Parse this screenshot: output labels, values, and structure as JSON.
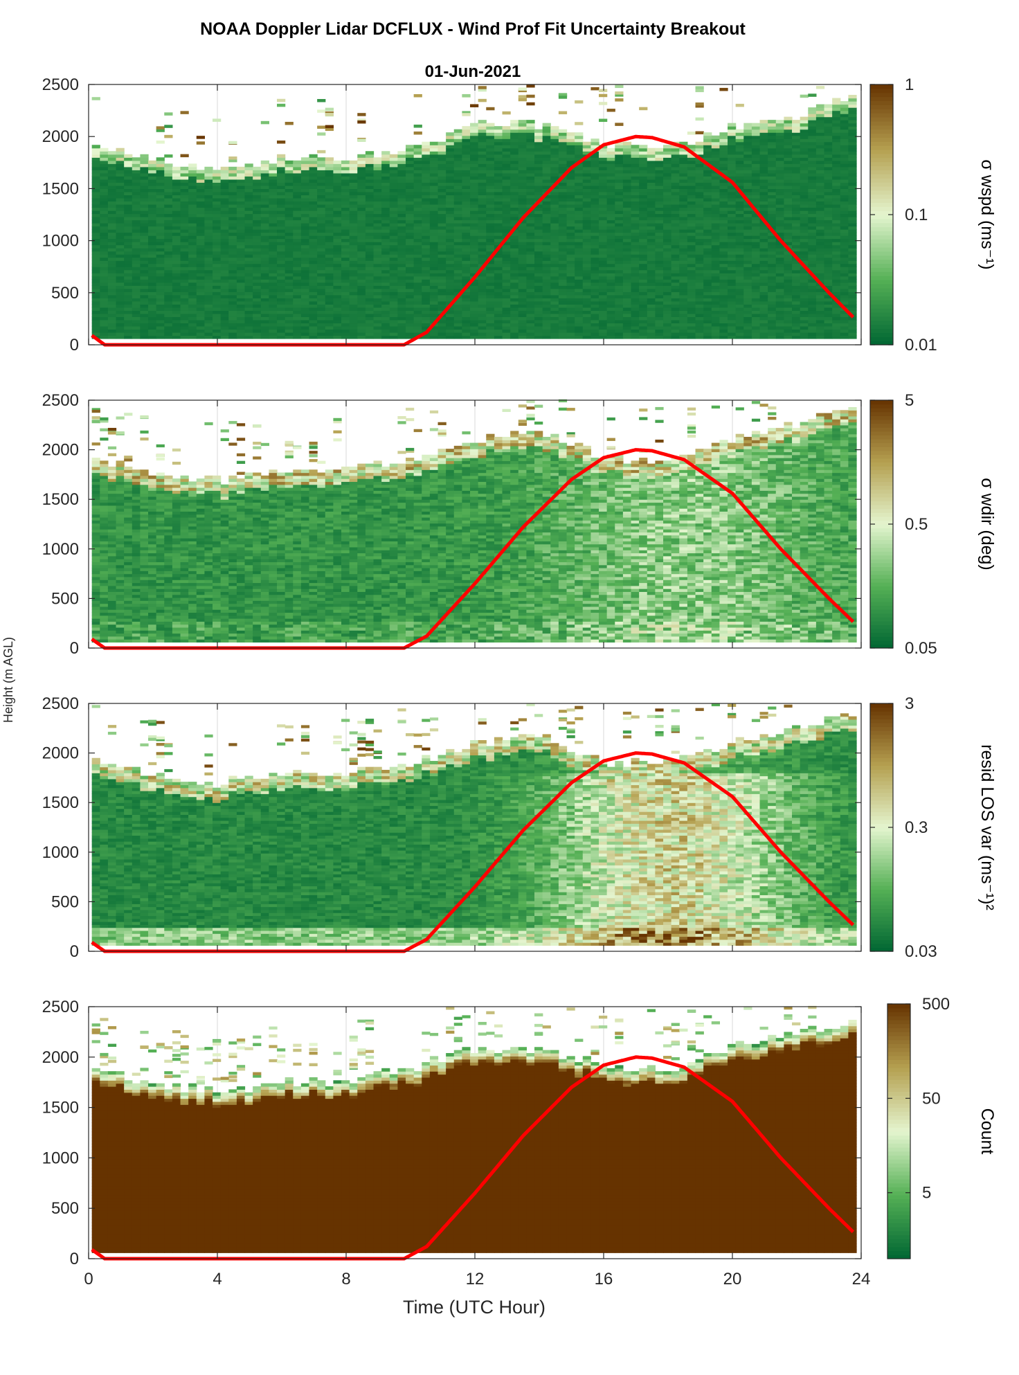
{
  "figure": {
    "title": "NOAA Doppler Lidar DCFLUX - Wind Prof Fit Uncertainty Breakout",
    "date": "01-Jun-2021",
    "xlabel": "Time (UTC Hour)",
    "ylabel": "Height (m AGL)"
  },
  "colors": {
    "colormap_low": "#006633",
    "colormap_mid_low": "#55b055",
    "colormap_mid": "#e4f5cf",
    "colormap_mid_high": "#b5a050",
    "colormap_high": "#663300",
    "sun_curve": "#ff0000",
    "grid": "#d9d9d9",
    "axes": "#262626"
  },
  "chart_data": [
    {
      "type": "heatmap",
      "panel": 1,
      "x_range": [
        0,
        24
      ],
      "y_range": [
        0,
        2500
      ],
      "xticks": [
        0,
        4,
        8,
        12,
        16,
        20,
        24
      ],
      "yticks": [
        0,
        500,
        1000,
        1500,
        2000,
        2500
      ],
      "grid": "x only",
      "colorbar": {
        "label": "σ wspd (ms⁻¹)",
        "scale": "log",
        "range": [
          0.01,
          1
        ],
        "ticks": [
          "0.01",
          "0.1",
          "1"
        ],
        "tick_values": [
          0.01,
          0.1,
          1
        ]
      },
      "field_summary": "mostly near the low end of the scale below the data top; sparse higher values near the top edge",
      "data_top_m": {
        "hours": [
          0.2,
          2,
          4,
          6,
          8,
          10,
          12,
          14,
          16,
          18,
          20,
          22,
          23.8
        ],
        "height": [
          1890,
          1750,
          1680,
          1780,
          1780,
          1900,
          2100,
          2100,
          1900,
          1880,
          2100,
          2200,
          2400
        ]
      },
      "lowest_data_m": 60
    },
    {
      "type": "heatmap",
      "panel": 2,
      "x_range": [
        0,
        24
      ],
      "y_range": [
        0,
        2500
      ],
      "xticks": [
        0,
        4,
        8,
        12,
        16,
        20,
        24
      ],
      "yticks": [
        0,
        500,
        1000,
        1500,
        2000,
        2500
      ],
      "grid": "x only",
      "colorbar": {
        "label": "σ wdir (deg)",
        "scale": "log",
        "range": [
          0.05,
          5
        ],
        "ticks": [
          "0.05",
          "0.5",
          "5"
        ],
        "tick_values": [
          0.05,
          0.5,
          5
        ]
      },
      "field_summary": "low values overnight, larger values in afternoon mixed layer and near the data top",
      "data_top_m": {
        "hours": [
          0.2,
          2,
          4,
          6,
          8,
          10,
          12,
          14,
          16,
          18,
          20,
          22,
          23.8
        ],
        "height": [
          1890,
          1750,
          1680,
          1780,
          1780,
          1900,
          2100,
          2150,
          1900,
          1880,
          2100,
          2250,
          2420
        ]
      },
      "lowest_data_m": 60
    },
    {
      "type": "heatmap",
      "panel": 3,
      "x_range": [
        0,
        24
      ],
      "y_range": [
        0,
        2500
      ],
      "xticks": [
        0,
        4,
        8,
        12,
        16,
        20,
        24
      ],
      "yticks": [
        0,
        500,
        1000,
        1500,
        2000,
        2500
      ],
      "grid": "x only",
      "colorbar": {
        "label": "resid LOS var (ms⁻¹)²",
        "scale": "log",
        "range": [
          0.03,
          3
        ],
        "ticks": [
          "0.03",
          "0.3",
          "3"
        ],
        "tick_values": [
          0.03,
          0.3,
          3
        ]
      },
      "field_summary": "low overnight; high variance in daytime convective boundary layer (hours 14-22, below ~1800 m)",
      "data_top_m": {
        "hours": [
          0.2,
          2,
          4,
          6,
          8,
          10,
          12,
          14,
          16,
          18,
          20,
          22,
          23.8
        ],
        "height": [
          1890,
          1750,
          1680,
          1780,
          1780,
          1900,
          2100,
          2150,
          1900,
          1880,
          2100,
          2250,
          2420
        ]
      },
      "lowest_data_m": 60
    },
    {
      "type": "heatmap",
      "panel": 4,
      "x_range": [
        0,
        24
      ],
      "y_range": [
        0,
        2500
      ],
      "xticks": [
        0,
        4,
        8,
        12,
        16,
        20,
        24
      ],
      "yticks": [
        0,
        500,
        1000,
        1500,
        2000,
        2500
      ],
      "grid": "x only",
      "colorbar": {
        "label": "Count",
        "scale": "log",
        "range": [
          1,
          500
        ],
        "ticks": [
          "5",
          "50",
          "500"
        ],
        "tick_values": [
          5,
          50,
          500
        ]
      },
      "field_summary": "saturated at maximum count below the data top; decreasing counts in the top few range gates",
      "data_top_m": {
        "hours": [
          0.2,
          2,
          4,
          6,
          8,
          10,
          12,
          14,
          16,
          18,
          20,
          22,
          23.8
        ],
        "height": [
          1880,
          1720,
          1650,
          1740,
          1750,
          1880,
          2080,
          2050,
          1900,
          1870,
          2100,
          2250,
          2350
        ]
      },
      "lowest_data_m": 60
    }
  ],
  "sun_curve": {
    "description": "solar elevation overlay",
    "hours": [
      0.1,
      0.5,
      9.8,
      10.5,
      12,
      13.5,
      15,
      16,
      17,
      17.5,
      18.5,
      20,
      21.5,
      23.0,
      23.8
    ],
    "height": [
      90,
      0,
      0,
      120,
      650,
      1220,
      1700,
      1920,
      2000,
      1990,
      1900,
      1560,
      1000,
      500,
      250
    ]
  }
}
